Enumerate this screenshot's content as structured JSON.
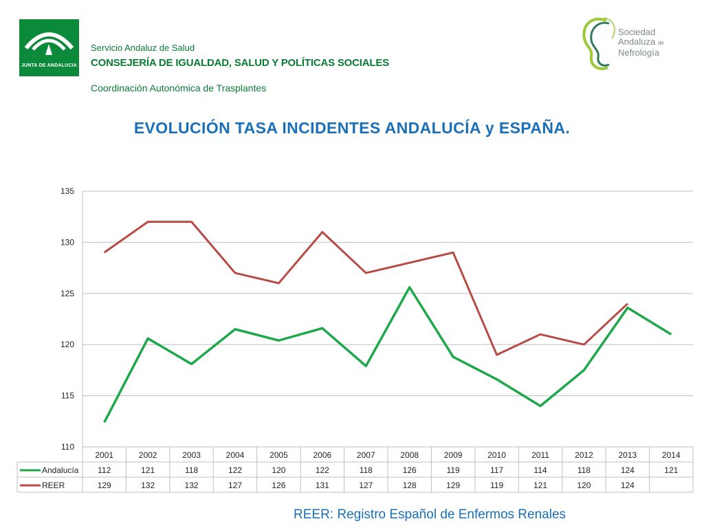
{
  "header": {
    "junta_logo_text": "JUNTA DE ANDALUCIA",
    "line1": "Servicio Andaluz de Salud",
    "line2": "CONSEJERÍA DE IGUALDAD, SALUD Y POLÍTICAS SOCIALES",
    "line3": "Coordinación Autonómica de Trasplantes",
    "sen_logo": {
      "line1": "Sociedad",
      "line2": "Andaluza",
      "line2_small": "de",
      "line3": "Nefrología"
    }
  },
  "colors": {
    "brand_green": "#0b8a3b",
    "title_blue": "#1a6fb8",
    "andalucia": "#1ea84a",
    "reer": "#b84a46",
    "grid": "#bfbfbf"
  },
  "chart_title": "EVOLUCIÓN TASA INCIDENTES ANDALUCÍA y ESPAÑA.",
  "chart_data": {
    "type": "line",
    "categories": [
      "2001",
      "2002",
      "2003",
      "2004",
      "2005",
      "2006",
      "2007",
      "2008",
      "2009",
      "2010",
      "2011",
      "2012",
      "2013",
      "2014"
    ],
    "yticks": [
      "110",
      "115",
      "120",
      "125",
      "130",
      "135"
    ],
    "ylim": [
      110,
      135
    ],
    "grid": true,
    "legend": "data-table",
    "series": [
      {
        "name": "Andalucía",
        "color": "#1ea84a",
        "values": [
          112.4,
          120.6,
          118.1,
          121.5,
          120.4,
          121.6,
          117.9,
          125.6,
          118.8,
          116.6,
          114.0,
          117.5,
          123.6,
          121.0
        ],
        "table_labels": [
          "112",
          "121",
          "118",
          "122",
          "120",
          "122",
          "118",
          "126",
          "119",
          "117",
          "114",
          "118",
          "124",
          "121"
        ]
      },
      {
        "name": "REER",
        "color": "#b84a46",
        "values": [
          129,
          132,
          132,
          127,
          126,
          131,
          127,
          128,
          129,
          119,
          121,
          120,
          124,
          null
        ],
        "table_labels": [
          "129",
          "132",
          "132",
          "127",
          "126",
          "131",
          "127",
          "128",
          "129",
          "119",
          "121",
          "120",
          "124",
          ""
        ]
      }
    ]
  },
  "footer": "REER:  Registro Español de Enfermos Renales"
}
